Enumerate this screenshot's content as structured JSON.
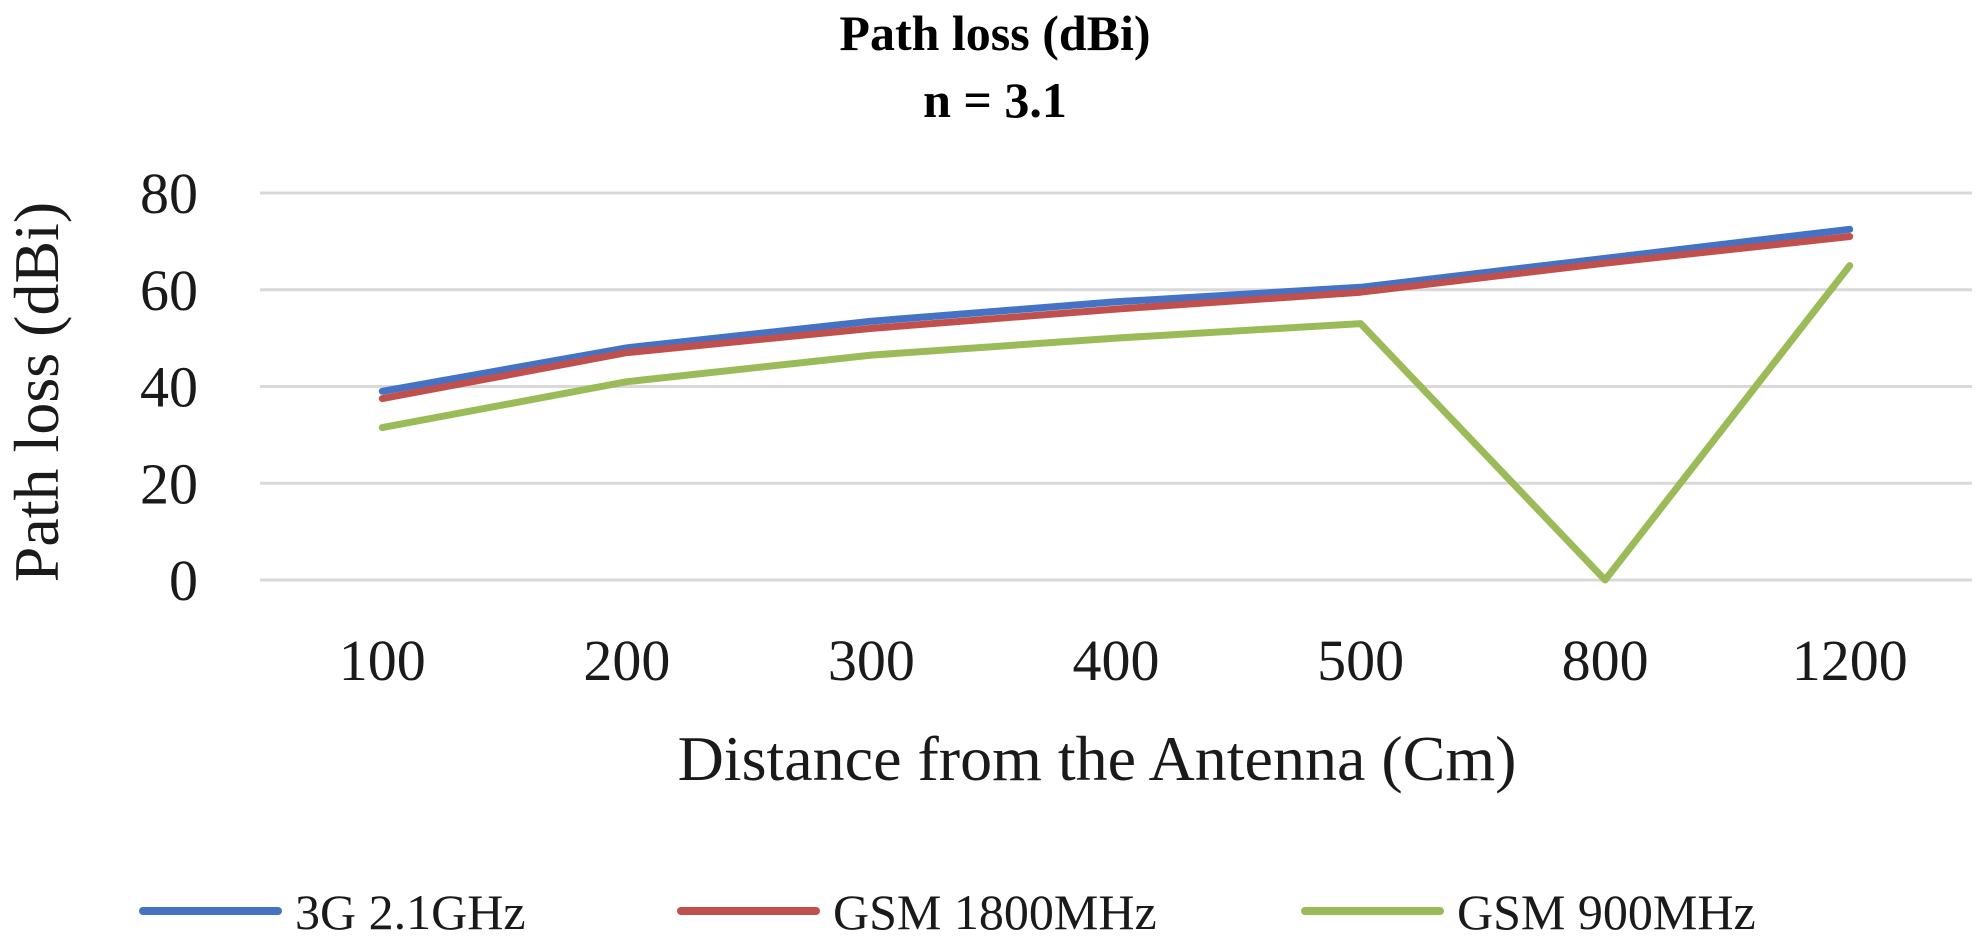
{
  "chart_data": {
    "type": "line",
    "title": "Path loss (dBi)",
    "subtitle": "n = 3.1",
    "xlabel": "Distance from the Antenna (Cm)",
    "ylabel": "Path loss (dBi)",
    "categories": [
      "100",
      "200",
      "300",
      "400",
      "500",
      "800",
      "1200"
    ],
    "ylim": [
      0,
      80
    ],
    "yticks": [
      0,
      20,
      40,
      60,
      80
    ],
    "grid": true,
    "legend_position": "bottom",
    "series": [
      {
        "name": "3G 2.1GHz",
        "color": "#4472C4",
        "values": [
          39,
          48,
          53.5,
          57.5,
          60.5,
          66.5,
          72.5
        ]
      },
      {
        "name": "GSM 1800MHz",
        "color": "#C0504D",
        "values": [
          37.5,
          47,
          52,
          56,
          59.5,
          65.5,
          71
        ]
      },
      {
        "name": "GSM 900MHz",
        "color": "#9BBB59",
        "values": [
          31.5,
          41,
          46.5,
          50,
          53,
          0,
          65
        ]
      }
    ]
  }
}
